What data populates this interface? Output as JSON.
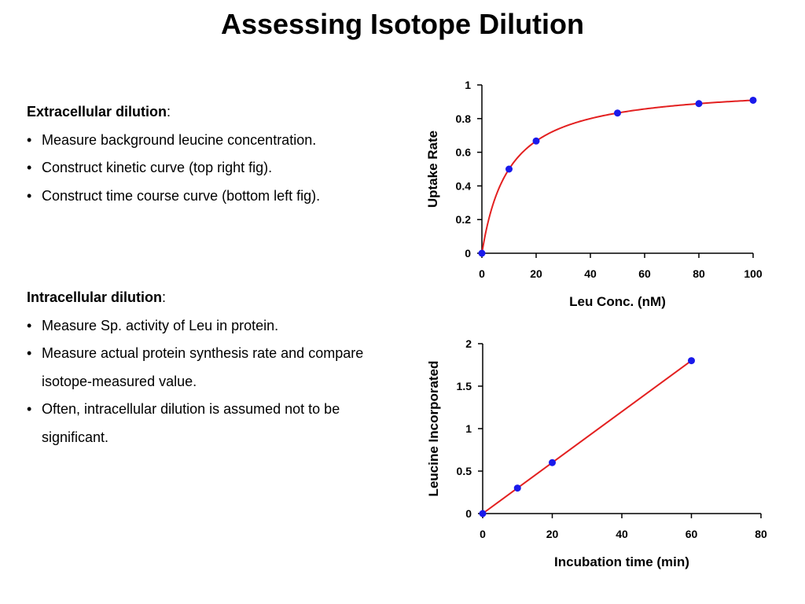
{
  "slide": {
    "title": "Assessing Isotope Dilution"
  },
  "extracellular": {
    "heading": "Extracellular dilution",
    "suffix": ":",
    "bullets": [
      "Measure background leucine concentration.",
      "Construct kinetic curve (top right fig).",
      "Construct time course curve (bottom left fig)."
    ]
  },
  "intracellular": {
    "heading": "Intracellular dilution",
    "suffix": ":",
    "bullets": [
      "Measure Sp. activity of Leu in protein.",
      "Measure actual protein synthesis rate and compare isotope-measured value.",
      "Often, intracellular dilution is assumed not to be significant."
    ]
  },
  "colors": {
    "curve": "#e32020",
    "point": "#1a1aeb",
    "axis": "#000000"
  },
  "chart_data": [
    {
      "type": "line",
      "title": "",
      "xlabel": "Leu Conc. (nM)",
      "ylabel": "Uptake Rate",
      "xlim": [
        0,
        100
      ],
      "ylim": [
        0,
        1
      ],
      "x_ticks": [
        "0",
        "20",
        "40",
        "60",
        "80",
        "100"
      ],
      "y_ticks": [
        "0",
        "0.2",
        "0.4",
        "0.6",
        "0.8",
        "1"
      ],
      "grid": false,
      "legend": "none",
      "curve": "saturation",
      "x": [
        0,
        10,
        20,
        50,
        80,
        100
      ],
      "y": [
        0,
        0.5,
        0.667,
        0.833,
        0.889,
        0.909
      ]
    },
    {
      "type": "line",
      "title": "",
      "xlabel": "Incubation time (min)",
      "ylabel": "Leucine Incorporated",
      "xlim": [
        0,
        80
      ],
      "ylim": [
        0,
        2
      ],
      "x_ticks": [
        "0",
        "20",
        "40",
        "60",
        "80"
      ],
      "y_ticks": [
        "0",
        "0.5",
        "1",
        "1.5",
        "2"
      ],
      "grid": false,
      "legend": "none",
      "curve": "linear",
      "x": [
        0,
        10,
        20,
        60
      ],
      "y": [
        0,
        0.3,
        0.6,
        1.8
      ]
    }
  ]
}
